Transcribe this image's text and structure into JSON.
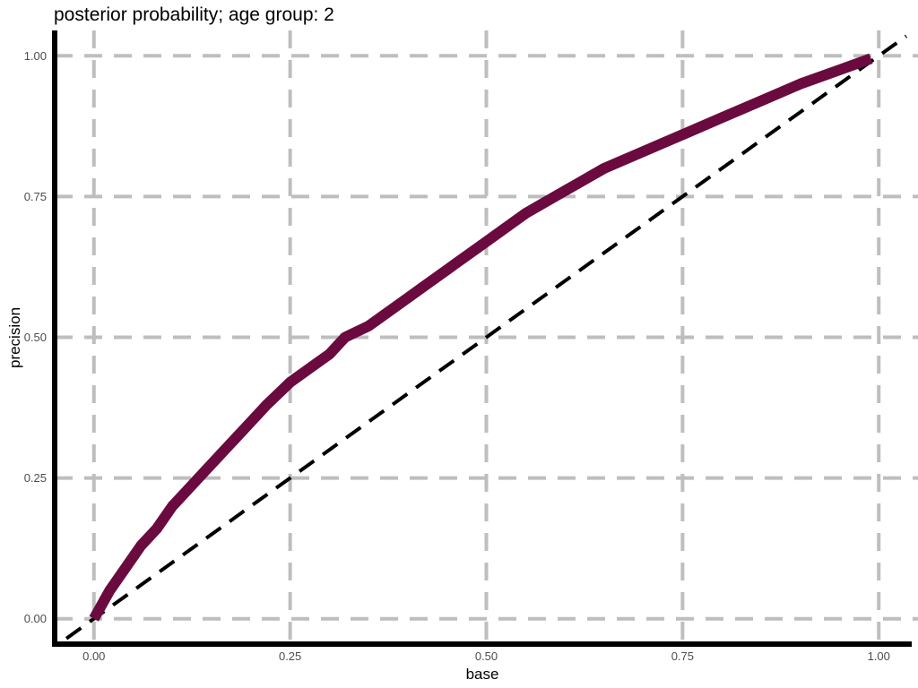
{
  "chart_data": {
    "type": "line",
    "title": "posterior probability; age group: 2",
    "xlabel": "base",
    "ylabel": "precision",
    "xlim": [
      -0.05,
      1.05
    ],
    "ylim": [
      -0.045,
      1.045
    ],
    "x_ticks": [
      0,
      0.25,
      0.5,
      0.75,
      1
    ],
    "x_tick_labels": [
      "0.00",
      "0.25",
      "0.50",
      "0.75",
      "1.00"
    ],
    "y_ticks": [
      0,
      0.25,
      0.5,
      0.75,
      1
    ],
    "y_tick_labels": [
      "0.00",
      "0.25",
      "0.50",
      "0.75",
      "1.00"
    ],
    "grid": true,
    "grid_style": "dashed",
    "series": [
      {
        "color": "#6a0a3f",
        "style": "solid",
        "x": [
          0,
          0.02,
          0.04,
          0.06,
          0.08,
          0.1,
          0.12,
          0.14,
          0.16,
          0.18,
          0.2,
          0.22,
          0.25,
          0.28,
          0.3,
          0.32,
          0.35,
          0.38,
          0.4,
          0.42,
          0.45,
          0.48,
          0.5,
          0.55,
          0.6,
          0.65,
          0.7,
          0.75,
          0.8,
          0.85,
          0.9,
          0.95,
          0.99
        ],
        "y": [
          0,
          0.05,
          0.09,
          0.13,
          0.16,
          0.2,
          0.23,
          0.26,
          0.29,
          0.32,
          0.35,
          0.38,
          0.42,
          0.45,
          0.47,
          0.5,
          0.52,
          0.55,
          0.57,
          0.59,
          0.62,
          0.65,
          0.67,
          0.72,
          0.76,
          0.8,
          0.83,
          0.86,
          0.89,
          0.92,
          0.95,
          0.975,
          0.995
        ]
      },
      {
        "color": "#000000",
        "style": "dashed",
        "x": [
          -0.035,
          1.035
        ],
        "y": [
          -0.035,
          1.035
        ]
      }
    ]
  }
}
